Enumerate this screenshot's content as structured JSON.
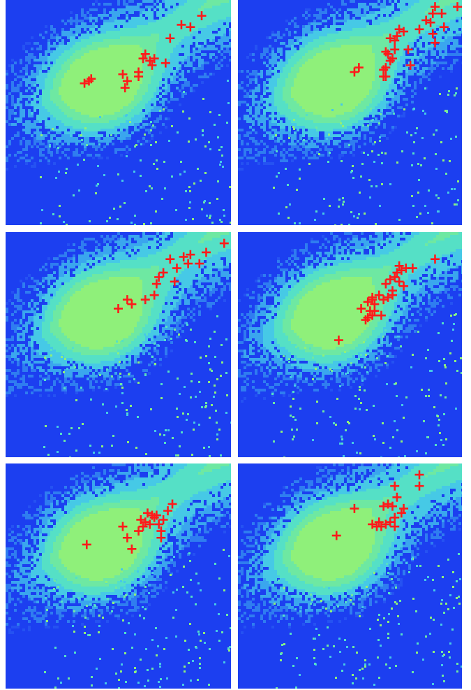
{
  "figure": {
    "description": "",
    "colors": {
      "background": "#1c3ff0",
      "density_levels": [
        "#2552f2",
        "#2f7df0",
        "#3aa6ee",
        "#46c9e6",
        "#55e0c6",
        "#6ee8a2",
        "#8ff07a"
      ],
      "marker": "#ff1a1a"
    },
    "marker_shape": "plus"
  },
  "chart_data": [
    {
      "type": "scatter",
      "title": "",
      "xlabel": "",
      "ylabel": "",
      "xlim": [
        0,
        1
      ],
      "ylim": [
        0,
        1
      ],
      "grid": false,
      "legend": "none",
      "series": [
        {
          "values": [
            {
              "x": 0.37,
              "y": 0.64
            },
            {
              "x": 0.38,
              "y": 0.65
            },
            {
              "x": 0.35,
              "y": 0.63
            },
            {
              "x": 0.52,
              "y": 0.67
            },
            {
              "x": 0.54,
              "y": 0.64
            },
            {
              "x": 0.53,
              "y": 0.61
            },
            {
              "x": 0.59,
              "y": 0.68
            },
            {
              "x": 0.61,
              "y": 0.74
            },
            {
              "x": 0.62,
              "y": 0.76
            },
            {
              "x": 0.64,
              "y": 0.73
            },
            {
              "x": 0.65,
              "y": 0.71
            },
            {
              "x": 0.66,
              "y": 0.74
            },
            {
              "x": 0.71,
              "y": 0.72
            },
            {
              "x": 0.73,
              "y": 0.83
            },
            {
              "x": 0.78,
              "y": 0.89
            },
            {
              "x": 0.82,
              "y": 0.88
            },
            {
              "x": 0.87,
              "y": 0.93
            },
            {
              "x": 0.59,
              "y": 0.66
            }
          ]
        }
      ]
    },
    {
      "type": "scatter",
      "title": "",
      "xlabel": "",
      "ylabel": "",
      "xlim": [
        0,
        1
      ],
      "ylim": [
        0,
        1
      ],
      "grid": false,
      "legend": "none",
      "series": [
        {
          "values": [
            {
              "x": 0.52,
              "y": 0.68
            },
            {
              "x": 0.54,
              "y": 0.7
            },
            {
              "x": 0.66,
              "y": 0.77
            },
            {
              "x": 0.67,
              "y": 0.76
            },
            {
              "x": 0.65,
              "y": 0.69
            },
            {
              "x": 0.68,
              "y": 0.73
            },
            {
              "x": 0.66,
              "y": 0.7
            },
            {
              "x": 0.69,
              "y": 0.74
            },
            {
              "x": 0.7,
              "y": 0.78
            },
            {
              "x": 0.71,
              "y": 0.84
            },
            {
              "x": 0.7,
              "y": 0.82
            },
            {
              "x": 0.68,
              "y": 0.83
            },
            {
              "x": 0.72,
              "y": 0.87
            },
            {
              "x": 0.74,
              "y": 0.86
            },
            {
              "x": 0.76,
              "y": 0.78
            },
            {
              "x": 0.77,
              "y": 0.71
            },
            {
              "x": 0.65,
              "y": 0.66
            },
            {
              "x": 0.66,
              "y": 0.66
            },
            {
              "x": 0.81,
              "y": 0.87
            },
            {
              "x": 0.84,
              "y": 0.91
            },
            {
              "x": 0.86,
              "y": 0.9
            },
            {
              "x": 0.87,
              "y": 0.94
            },
            {
              "x": 0.92,
              "y": 0.88
            },
            {
              "x": 0.87,
              "y": 0.85
            },
            {
              "x": 0.88,
              "y": 0.81
            },
            {
              "x": 0.88,
              "y": 0.97
            },
            {
              "x": 0.91,
              "y": 0.94
            },
            {
              "x": 0.98,
              "y": 0.97
            }
          ]
        }
      ]
    },
    {
      "type": "scatter",
      "title": "",
      "xlabel": "",
      "ylabel": "",
      "xlim": [
        0,
        1
      ],
      "ylim": [
        0,
        1
      ],
      "grid": false,
      "legend": "none",
      "series": [
        {
          "values": [
            {
              "x": 0.5,
              "y": 0.66
            },
            {
              "x": 0.54,
              "y": 0.7
            },
            {
              "x": 0.56,
              "y": 0.68
            },
            {
              "x": 0.62,
              "y": 0.7
            },
            {
              "x": 0.66,
              "y": 0.72
            },
            {
              "x": 0.67,
              "y": 0.77
            },
            {
              "x": 0.68,
              "y": 0.8
            },
            {
              "x": 0.7,
              "y": 0.82
            },
            {
              "x": 0.73,
              "y": 0.88
            },
            {
              "x": 0.75,
              "y": 0.78
            },
            {
              "x": 0.76,
              "y": 0.84
            },
            {
              "x": 0.79,
              "y": 0.89
            },
            {
              "x": 0.81,
              "y": 0.86
            },
            {
              "x": 0.82,
              "y": 0.9
            },
            {
              "x": 0.86,
              "y": 0.86
            },
            {
              "x": 0.89,
              "y": 0.91
            },
            {
              "x": 0.97,
              "y": 0.95
            }
          ]
        }
      ]
    },
    {
      "type": "scatter",
      "title": "",
      "xlabel": "",
      "ylabel": "",
      "xlim": [
        0,
        1
      ],
      "ylim": [
        0,
        1
      ],
      "grid": false,
      "legend": "none",
      "series": [
        {
          "values": [
            {
              "x": 0.45,
              "y": 0.52
            },
            {
              "x": 0.57,
              "y": 0.61
            },
            {
              "x": 0.58,
              "y": 0.62
            },
            {
              "x": 0.6,
              "y": 0.63
            },
            {
              "x": 0.61,
              "y": 0.65
            },
            {
              "x": 0.58,
              "y": 0.69
            },
            {
              "x": 0.6,
              "y": 0.7
            },
            {
              "x": 0.61,
              "y": 0.68
            },
            {
              "x": 0.63,
              "y": 0.72
            },
            {
              "x": 0.65,
              "y": 0.7
            },
            {
              "x": 0.67,
              "y": 0.71
            },
            {
              "x": 0.69,
              "y": 0.72
            },
            {
              "x": 0.66,
              "y": 0.77
            },
            {
              "x": 0.68,
              "y": 0.79
            },
            {
              "x": 0.7,
              "y": 0.8
            },
            {
              "x": 0.71,
              "y": 0.82
            },
            {
              "x": 0.72,
              "y": 0.85
            },
            {
              "x": 0.73,
              "y": 0.83
            },
            {
              "x": 0.75,
              "y": 0.84
            },
            {
              "x": 0.72,
              "y": 0.78
            },
            {
              "x": 0.74,
              "y": 0.76
            },
            {
              "x": 0.69,
              "y": 0.74
            },
            {
              "x": 0.78,
              "y": 0.84
            },
            {
              "x": 0.59,
              "y": 0.65
            },
            {
              "x": 0.64,
              "y": 0.63
            },
            {
              "x": 0.88,
              "y": 0.88
            },
            {
              "x": 0.55,
              "y": 0.66
            },
            {
              "x": 0.6,
              "y": 0.71
            }
          ]
        }
      ]
    },
    {
      "type": "scatter",
      "title": "",
      "xlabel": "",
      "ylabel": "",
      "xlim": [
        0,
        1
      ],
      "ylim": [
        0,
        1
      ],
      "grid": false,
      "legend": "none",
      "series": [
        {
          "values": [
            {
              "x": 0.36,
              "y": 0.64
            },
            {
              "x": 0.52,
              "y": 0.72
            },
            {
              "x": 0.54,
              "y": 0.67
            },
            {
              "x": 0.56,
              "y": 0.62
            },
            {
              "x": 0.59,
              "y": 0.7
            },
            {
              "x": 0.6,
              "y": 0.75
            },
            {
              "x": 0.62,
              "y": 0.74
            },
            {
              "x": 0.63,
              "y": 0.78
            },
            {
              "x": 0.64,
              "y": 0.73
            },
            {
              "x": 0.66,
              "y": 0.76
            },
            {
              "x": 0.67,
              "y": 0.77
            },
            {
              "x": 0.68,
              "y": 0.73
            },
            {
              "x": 0.69,
              "y": 0.7
            },
            {
              "x": 0.69,
              "y": 0.67
            },
            {
              "x": 0.7,
              "y": 0.75
            },
            {
              "x": 0.72,
              "y": 0.79
            },
            {
              "x": 0.74,
              "y": 0.82
            },
            {
              "x": 0.61,
              "y": 0.72
            },
            {
              "x": 0.65,
              "y": 0.77
            }
          ]
        }
      ]
    },
    {
      "type": "scatter",
      "title": "",
      "xlabel": "",
      "ylabel": "",
      "xlim": [
        0,
        1
      ],
      "ylim": [
        0,
        1
      ],
      "grid": false,
      "legend": "none",
      "series": [
        {
          "values": [
            {
              "x": 0.44,
              "y": 0.68
            },
            {
              "x": 0.52,
              "y": 0.8
            },
            {
              "x": 0.6,
              "y": 0.73
            },
            {
              "x": 0.62,
              "y": 0.72
            },
            {
              "x": 0.64,
              "y": 0.72
            },
            {
              "x": 0.66,
              "y": 0.73
            },
            {
              "x": 0.68,
              "y": 0.74
            },
            {
              "x": 0.7,
              "y": 0.72
            },
            {
              "x": 0.65,
              "y": 0.81
            },
            {
              "x": 0.67,
              "y": 0.82
            },
            {
              "x": 0.69,
              "y": 0.81
            },
            {
              "x": 0.7,
              "y": 0.76
            },
            {
              "x": 0.73,
              "y": 0.78
            },
            {
              "x": 0.74,
              "y": 0.8
            },
            {
              "x": 0.71,
              "y": 0.85
            },
            {
              "x": 0.7,
              "y": 0.9
            },
            {
              "x": 0.81,
              "y": 0.9
            },
            {
              "x": 0.81,
              "y": 0.95
            },
            {
              "x": 0.63,
              "y": 0.74
            }
          ]
        }
      ]
    }
  ]
}
